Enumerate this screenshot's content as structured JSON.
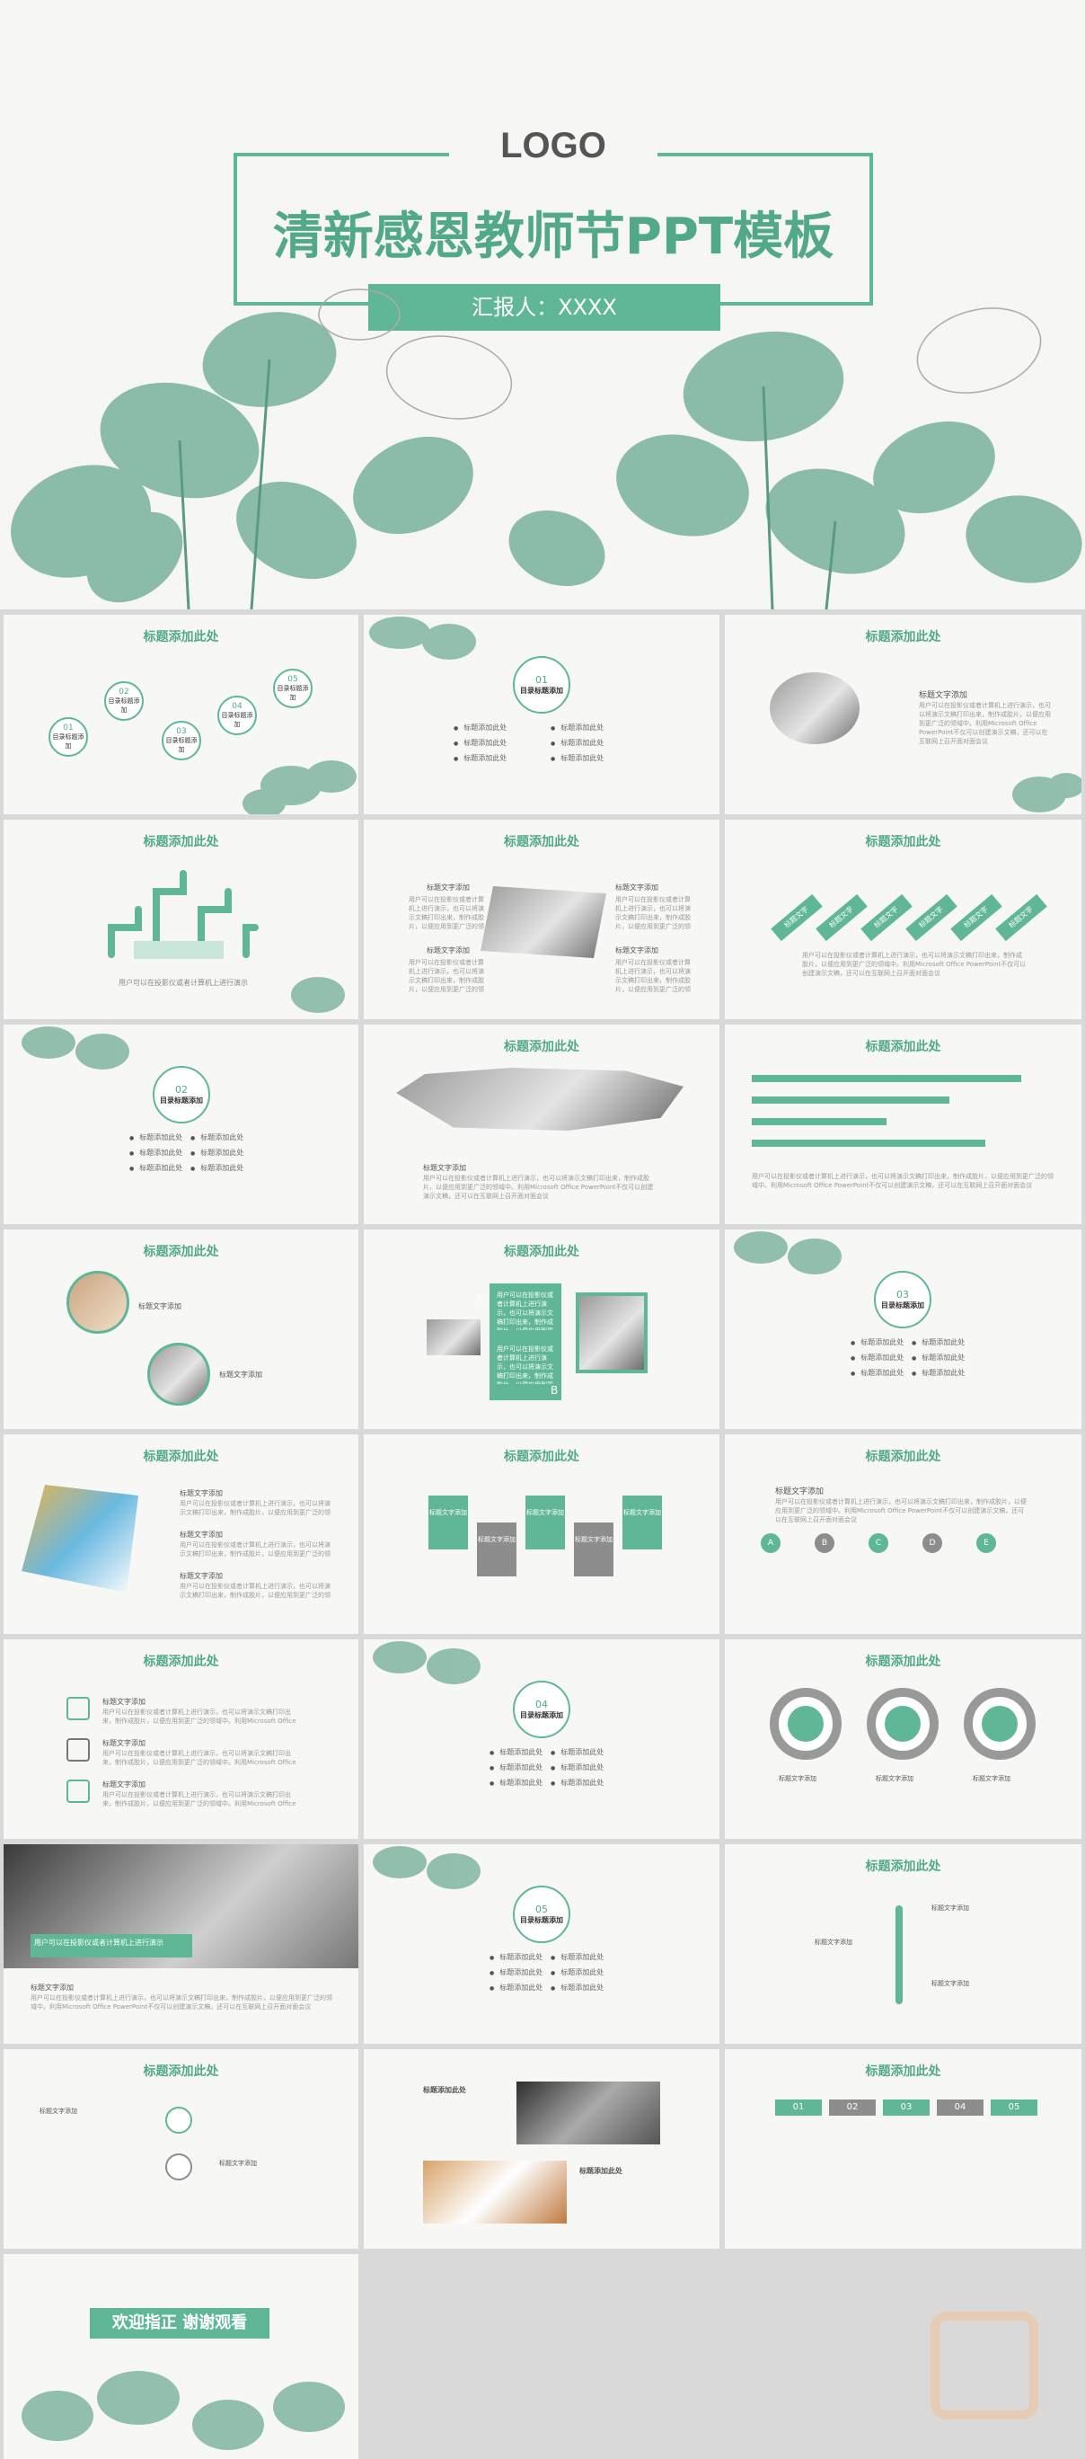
{
  "cover": {
    "logo": "LOGO",
    "title": "清新感恩教师节PPT模板",
    "reporter": "汇报人：XXXX"
  },
  "common": {
    "slide_title": "标题添加此处",
    "item_text": "标题添加此处",
    "sub_title": "标题文字添加",
    "body_text": "用户可以在投影仪或者计算机上进行演示，也可以将演示文稿打印出来，制作成胶片，以便应用到更广泛的领域中。利用Microsoft Office PowerPoint不仅可以创建演示文稿，还可以在互联网上召开面对面会议",
    "demo_text": "用户可以在投影仪或者计算机上进行演示"
  },
  "sections": [
    {
      "num": "01",
      "label": "目录标题添加"
    },
    {
      "num": "02",
      "label": "目录标题添加"
    },
    {
      "num": "03",
      "label": "目录标题添加"
    },
    {
      "num": "04",
      "label": "目录标题添加"
    },
    {
      "num": "05",
      "label": "目录标题添加"
    }
  ],
  "toc_nodes": [
    "01",
    "02",
    "03",
    "04",
    "05"
  ],
  "diag_labels": [
    "标题文字",
    "标题文字",
    "标题文字",
    "标题文字",
    "标题文字",
    "标题文字"
  ],
  "abc_labels": [
    "A",
    "B",
    "C",
    "D",
    "E"
  ],
  "ab_labels": [
    "A",
    "B"
  ],
  "closing": "欢迎指正  谢谢观看",
  "numbered_cards": [
    "01",
    "02",
    "03",
    "04",
    "05"
  ],
  "icons": [
    "magnifier-icon",
    "gear-icon",
    "chart-icon",
    "user-icon",
    "sun-icon",
    "monitor-icon"
  ],
  "colors": {
    "accent": "#5fb796",
    "accent_dark": "#3f9a7c",
    "gray": "#8d8d8d"
  }
}
